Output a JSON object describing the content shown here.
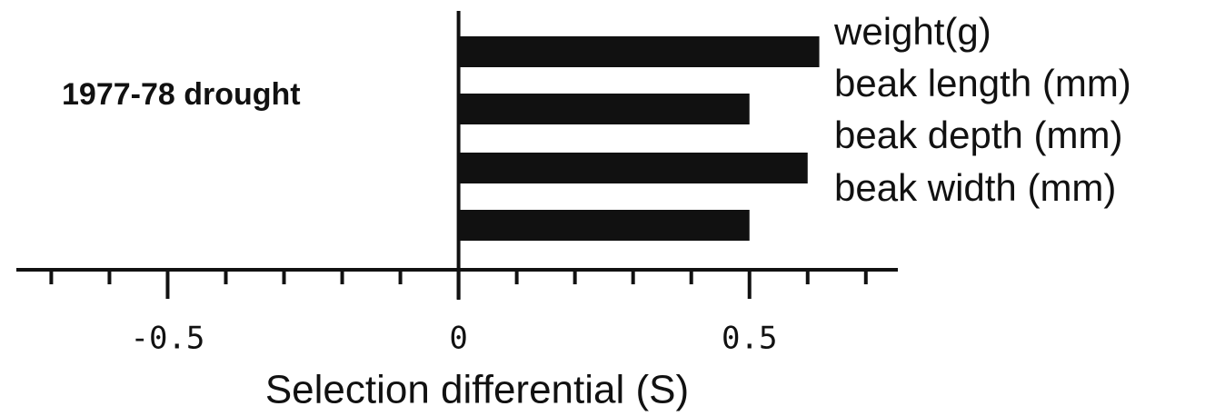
{
  "chart_data": {
    "type": "bar",
    "orientation": "horizontal",
    "title": "1977-78 drought",
    "xlabel": "Selection differential (S)",
    "categories": [
      "weight(g)",
      "beak length (mm)",
      "beak depth (mm)",
      "beak width (mm)"
    ],
    "values": [
      0.62,
      0.5,
      0.6,
      0.5
    ],
    "color": "#111111",
    "xlim": [
      -0.76,
      0.755
    ],
    "xticks": [
      -0.5,
      0,
      0.5
    ],
    "xminor_ticks": [
      -0.7,
      -0.6,
      -0.4,
      -0.3,
      -0.2,
      -0.1,
      0.1,
      0.2,
      0.3,
      0.4,
      0.6,
      0.7
    ],
    "grid": false
  }
}
